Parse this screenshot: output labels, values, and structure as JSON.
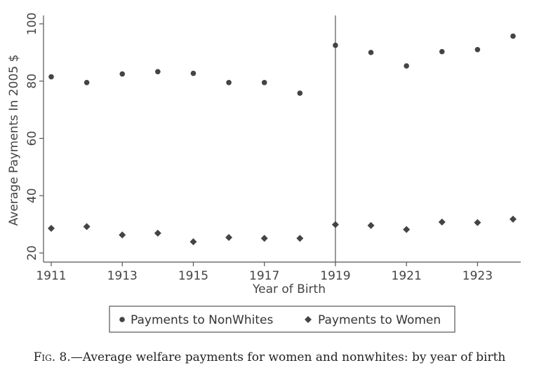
{
  "chart_data": {
    "type": "scatter",
    "title": "",
    "xlabel": "Year of Birth",
    "ylabel": "Average Payments In 2005 $",
    "xlim": [
      1911,
      1924
    ],
    "ylim": [
      20,
      100
    ],
    "x_ticks": [
      "1911",
      "1913",
      "1915",
      "1917",
      "1919",
      "1921",
      "1923"
    ],
    "y_ticks": [
      "20",
      "40",
      "60",
      "80",
      "100"
    ],
    "reference_line_x": 1919,
    "x": [
      1911,
      1912,
      1913,
      1914,
      1915,
      1916,
      1917,
      1918,
      1919,
      1920,
      1921,
      1922,
      1923,
      1924
    ],
    "series": [
      {
        "name": "Payments to NonWhites",
        "marker": "circle",
        "color": "#444444",
        "values": [
          81.5,
          79.5,
          82.5,
          83.3,
          82.7,
          79.5,
          79.5,
          75.8,
          92.5,
          90.0,
          85.3,
          90.3,
          91.0,
          95.7
        ]
      },
      {
        "name": "Payments to Women",
        "marker": "diamond",
        "color": "#444444",
        "values": [
          28.6,
          29.2,
          26.3,
          26.9,
          23.9,
          25.4,
          25.1,
          25.1,
          29.9,
          29.6,
          28.2,
          30.8,
          30.6,
          31.8
        ]
      }
    ],
    "legend_position": "bottom"
  },
  "caption": {
    "fig_label": "Fig. 8.",
    "text": "—Average welfare payments for women and nonwhites: by year of birth"
  }
}
